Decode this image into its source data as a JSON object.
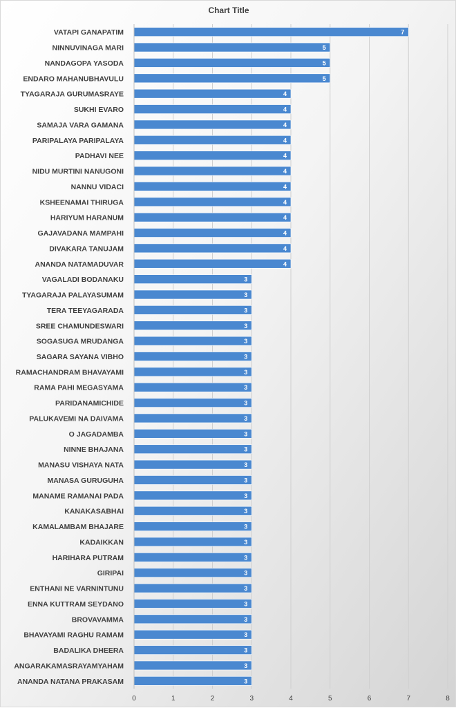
{
  "chart_data": {
    "type": "bar",
    "orientation": "horizontal",
    "title": "Chart Title",
    "xlabel": "",
    "ylabel": "",
    "xlim": [
      0,
      8
    ],
    "x_ticks": [
      "0",
      "1",
      "2",
      "3",
      "4",
      "5",
      "6",
      "7",
      "8"
    ],
    "grid": true,
    "bar_color": "#4a88d0",
    "categories": [
      "VATAPI GANAPATIM",
      "NINNUVINAGA MARI",
      "NANDAGOPA YASODA",
      "ENDARO MAHANUBHAVULU",
      "TYAGARAJA GURUMASRAYE",
      "SUKHI EVARO",
      "SAMAJA VARA GAMANA",
      "PARIPALAYA PARIPALAYA",
      "PADHAVI NEE",
      "NIDU MURTINI NANUGONI",
      "NANNU VIDACI",
      "KSHEENAMAI THIRUGA",
      "HARIYUM HARANUM",
      "GAJAVADANA MAMPAHI",
      "DIVAKARA TANUJAM",
      "ANANDA NATAMADUVAR",
      "VAGALADI BODANAKU",
      "TYAGARAJA PALAYASUMAM",
      "TERA TEEYAGARADA",
      "SREE CHAMUNDESWARI",
      "SOGASUGA MRUDANGA",
      "SAGARA SAYANA VIBHO",
      "RAMACHANDRAM BHAVAYAMI",
      "RAMA PAHI MEGASYAMA",
      "PARIDANAMICHIDE",
      "PALUKAVEMI NA DAIVAMA",
      "O JAGADAMBA",
      "NINNE BHAJANA",
      "MANASU VISHAYA NATA",
      "MANASA GURUGUHA",
      "MANAME RAMANAI PADA",
      "KANAKASABHAI",
      "KAMALAMBAM BHAJARE",
      "KADAIKKAN",
      "HARIHARA PUTRAM",
      "GIRIPAI",
      "ENTHANI NE VARNINTUNU",
      "ENNA KUTTRAM SEYDANO",
      "BROVAVAMMA",
      "BHAVAYAMI RAGHU RAMAM",
      "BADALIKA DHEERA",
      "ANGARAKAMASRAYAMYAHAM",
      "ANANDA NATANA PRAKASAM"
    ],
    "values": [
      7,
      5,
      5,
      5,
      4,
      4,
      4,
      4,
      4,
      4,
      4,
      4,
      4,
      4,
      4,
      4,
      3,
      3,
      3,
      3,
      3,
      3,
      3,
      3,
      3,
      3,
      3,
      3,
      3,
      3,
      3,
      3,
      3,
      3,
      3,
      3,
      3,
      3,
      3,
      3,
      3,
      3,
      3
    ]
  }
}
